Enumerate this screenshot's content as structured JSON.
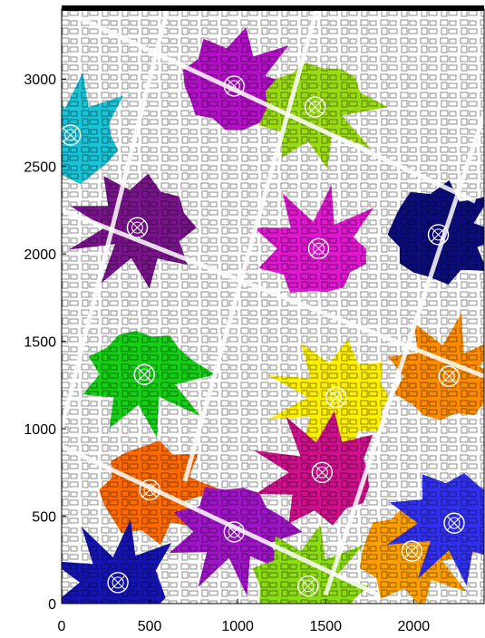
{
  "figure": {
    "x_axis": {
      "range": [
        0,
        2400
      ],
      "ticks": [
        {
          "value": 0,
          "label": "0"
        },
        {
          "value": 500,
          "label": "500"
        },
        {
          "value": 1000,
          "label": "1000"
        },
        {
          "value": 1500,
          "label": "1500"
        },
        {
          "value": 2000,
          "label": "2000"
        }
      ]
    },
    "y_axis": {
      "range": [
        0,
        3400
      ],
      "ticks": [
        {
          "value": 0,
          "label": "0"
        },
        {
          "value": 500,
          "label": "500"
        },
        {
          "value": 1000,
          "label": "1000"
        },
        {
          "value": 1500,
          "label": "1500"
        },
        {
          "value": 2000,
          "label": "2000"
        },
        {
          "value": 2500,
          "label": "2500"
        },
        {
          "value": 3000,
          "label": "3000"
        }
      ]
    },
    "building_outline_color": "#000000",
    "coverage_cells": [
      {
        "id": "cell-cyan",
        "color": "#19c4d8",
        "base_station": [
          50,
          2680
        ]
      },
      {
        "id": "cell-magenta-top",
        "color": "#b310c8",
        "base_station": [
          980,
          2960
        ]
      },
      {
        "id": "cell-lime-top",
        "color": "#9adc14",
        "base_station": [
          1440,
          2840
        ]
      },
      {
        "id": "cell-violet-left",
        "color": "#7a148c",
        "base_station": [
          430,
          2150
        ]
      },
      {
        "id": "cell-pink-mid",
        "color": "#e018d0",
        "base_station": [
          1460,
          2030
        ]
      },
      {
        "id": "cell-navy",
        "color": "#0c0c7c",
        "base_station": [
          2140,
          2110
        ]
      },
      {
        "id": "cell-green",
        "color": "#16d016",
        "base_station": [
          470,
          1310
        ]
      },
      {
        "id": "cell-yellow",
        "color": "#fff000",
        "base_station": [
          1560,
          1180
        ]
      },
      {
        "id": "cell-orange-right",
        "color": "#ff8c00",
        "base_station": [
          2200,
          1300
        ]
      },
      {
        "id": "cell-orange-left",
        "color": "#ff6a00",
        "base_station": [
          500,
          650
        ]
      },
      {
        "id": "cell-purple-low",
        "color": "#a014c8",
        "base_station": [
          980,
          410
        ]
      },
      {
        "id": "cell-magenta-low",
        "color": "#d0108c",
        "base_station": [
          1480,
          750
        ]
      },
      {
        "id": "cell-lime-low",
        "color": "#8cdc14",
        "base_station": [
          1400,
          100
        ]
      },
      {
        "id": "cell-gold",
        "color": "#ffa000",
        "base_station": [
          1990,
          300
        ]
      },
      {
        "id": "cell-blue-right",
        "color": "#3030f0",
        "base_station": [
          2230,
          460
        ]
      },
      {
        "id": "cell-blue-low",
        "color": "#1414b4",
        "base_station": [
          320,
          120
        ]
      }
    ]
  }
}
